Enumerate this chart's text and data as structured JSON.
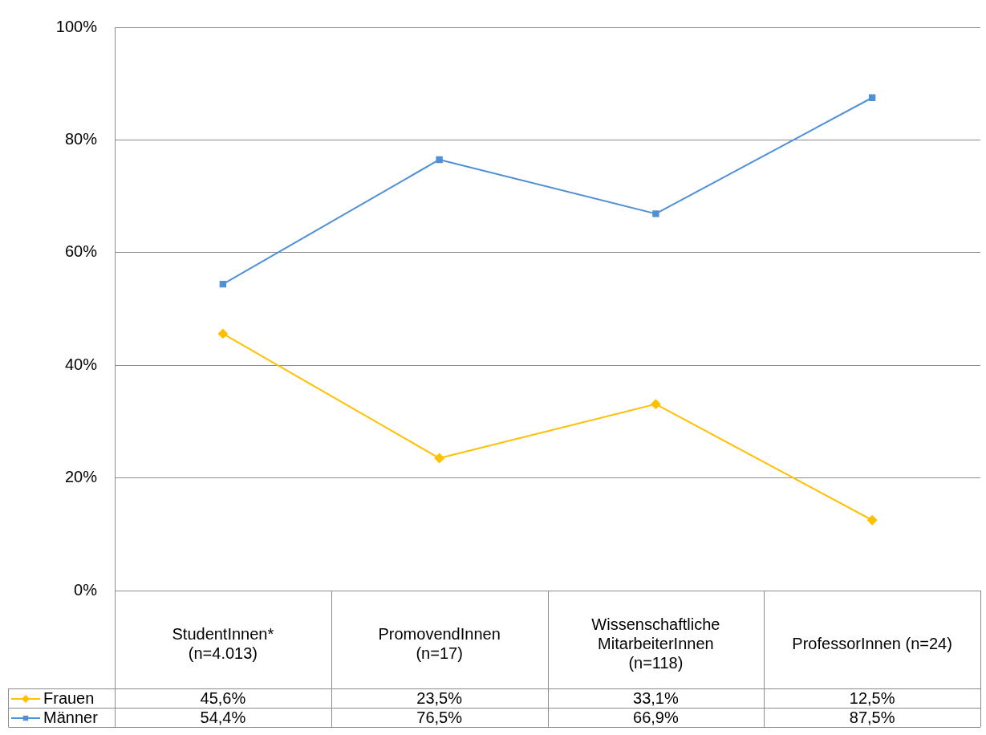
{
  "chart_data": {
    "type": "line",
    "categories": [
      "StudentInnen*\n(n=4.013)",
      "PromovendInnen\n(n=17)",
      "Wissenschaftliche\nMitarbeiterInnen\n(n=118)",
      "ProfessorInnen (n=24)"
    ],
    "series": [
      {
        "name": "Frauen",
        "color": "#ffc000",
        "marker": "diamond",
        "values": [
          45.6,
          23.5,
          33.1,
          12.5
        ],
        "value_labels": [
          "45,6%",
          "23,5%",
          "33,1%",
          "12,5%"
        ]
      },
      {
        "name": "Männer",
        "color": "#4f90d6",
        "marker": "square",
        "values": [
          54.4,
          76.5,
          66.9,
          87.5
        ],
        "value_labels": [
          "54,4%",
          "76,5%",
          "66,9%",
          "87,5%"
        ]
      }
    ],
    "ylim": [
      0,
      100
    ],
    "yticks": [
      {
        "value": 0,
        "label": "0%"
      },
      {
        "value": 20,
        "label": "20%"
      },
      {
        "value": 40,
        "label": "40%"
      },
      {
        "value": 60,
        "label": "60%"
      },
      {
        "value": 80,
        "label": "80%"
      },
      {
        "value": 100,
        "label": "100%"
      }
    ],
    "grid": "y",
    "legend": "bottom"
  }
}
